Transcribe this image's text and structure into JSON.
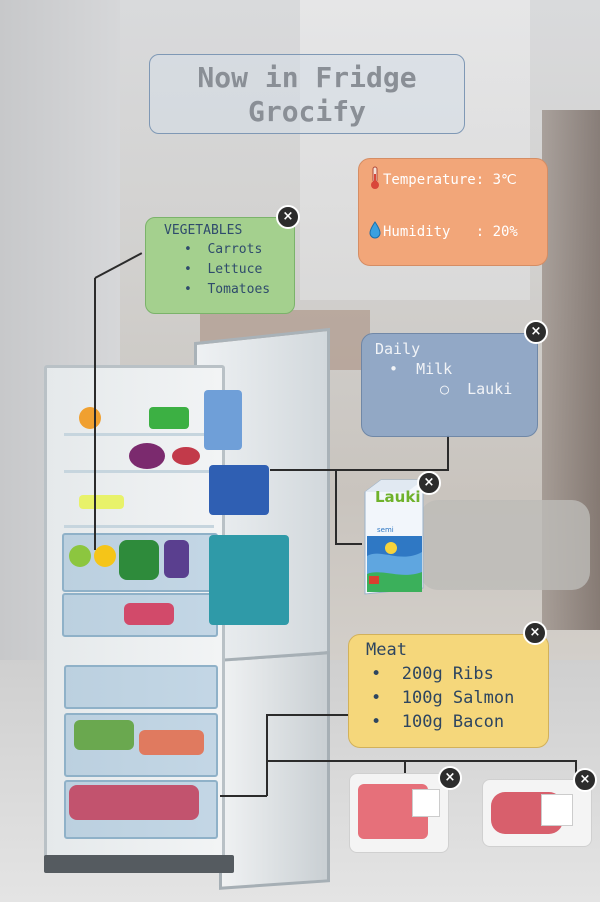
{
  "title": {
    "line1": "Now in Fridge",
    "line2": "Grocify"
  },
  "environment": {
    "temperature_label": "Temperature: 3℃",
    "humidity_label": "Humidity   : 20%",
    "temp_icon": "thermometer-icon",
    "humidity_icon": "water-drop-icon"
  },
  "vegetables": {
    "heading": "VEGETABLES",
    "items": [
      "Carrots",
      "Lettuce",
      "Tomatoes"
    ]
  },
  "daily": {
    "heading": "Daily",
    "item": "Milk",
    "subitem": "Lauki"
  },
  "meat": {
    "heading": "Meat",
    "items": [
      "200g Ribs",
      "100g Salmon",
      "100g Bacon"
    ]
  },
  "milk_carton": {
    "brand": "Lauki",
    "variant": "semi"
  },
  "close_symbol": "×",
  "bullets": {
    "disc": "•",
    "circle": "○"
  },
  "colors": {
    "env": "#f2a679",
    "vegetables": "#a4d08e",
    "daily": "#8fa7c6",
    "meat": "#f5d77b"
  }
}
